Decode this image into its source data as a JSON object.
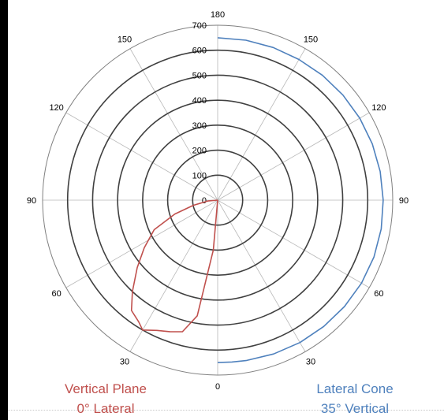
{
  "chart_data": {
    "type": "polar-line",
    "angle_labels": [
      "0",
      "30",
      "60",
      "90",
      "120",
      "150",
      "180",
      "150",
      "120",
      "90",
      "60",
      "30"
    ],
    "radial_ticks": [
      0,
      100,
      200,
      300,
      400,
      500,
      600,
      700
    ],
    "rlim": [
      0,
      700
    ],
    "grid": true,
    "series": [
      {
        "name_lines": [
          "Vertical Plane",
          "0° Lateral"
        ],
        "color": "#c0504d",
        "side": "left",
        "points": [
          {
            "angle": 0,
            "r": 0
          },
          {
            "angle": 5,
            "r": 200
          },
          {
            "angle": 10,
            "r": 470
          },
          {
            "angle": 15,
            "r": 545
          },
          {
            "angle": 20,
            "r": 560
          },
          {
            "angle": 25,
            "r": 575
          },
          {
            "angle": 30,
            "r": 600
          },
          {
            "angle": 33,
            "r": 580
          },
          {
            "angle": 38,
            "r": 560
          },
          {
            "angle": 43,
            "r": 500
          },
          {
            "angle": 50,
            "r": 420
          },
          {
            "angle": 57,
            "r": 350
          },
          {
            "angle": 65,
            "r": 280
          },
          {
            "angle": 72,
            "r": 180
          },
          {
            "angle": 78,
            "r": 100
          },
          {
            "angle": 85,
            "r": 40
          },
          {
            "angle": 90,
            "r": 0
          }
        ]
      },
      {
        "name_lines": [
          "Lateral Cone",
          "35° Vertical"
        ],
        "color": "#4f81bd",
        "side": "right",
        "points": [
          {
            "angle": 0,
            "r": 650
          },
          {
            "angle": 5,
            "r": 650
          },
          {
            "angle": 10,
            "r": 652
          },
          {
            "angle": 20,
            "r": 655
          },
          {
            "angle": 30,
            "r": 658
          },
          {
            "angle": 40,
            "r": 660
          },
          {
            "angle": 50,
            "r": 662
          },
          {
            "angle": 60,
            "r": 664
          },
          {
            "angle": 70,
            "r": 665
          },
          {
            "angle": 80,
            "r": 664
          },
          {
            "angle": 90,
            "r": 662
          },
          {
            "angle": 100,
            "r": 660
          },
          {
            "angle": 110,
            "r": 658
          },
          {
            "angle": 120,
            "r": 656
          },
          {
            "angle": 130,
            "r": 654
          },
          {
            "angle": 140,
            "r": 652
          },
          {
            "angle": 150,
            "r": 650
          },
          {
            "angle": 160,
            "r": 650
          },
          {
            "angle": 170,
            "r": 650
          },
          {
            "angle": 180,
            "r": 650
          }
        ]
      }
    ]
  }
}
